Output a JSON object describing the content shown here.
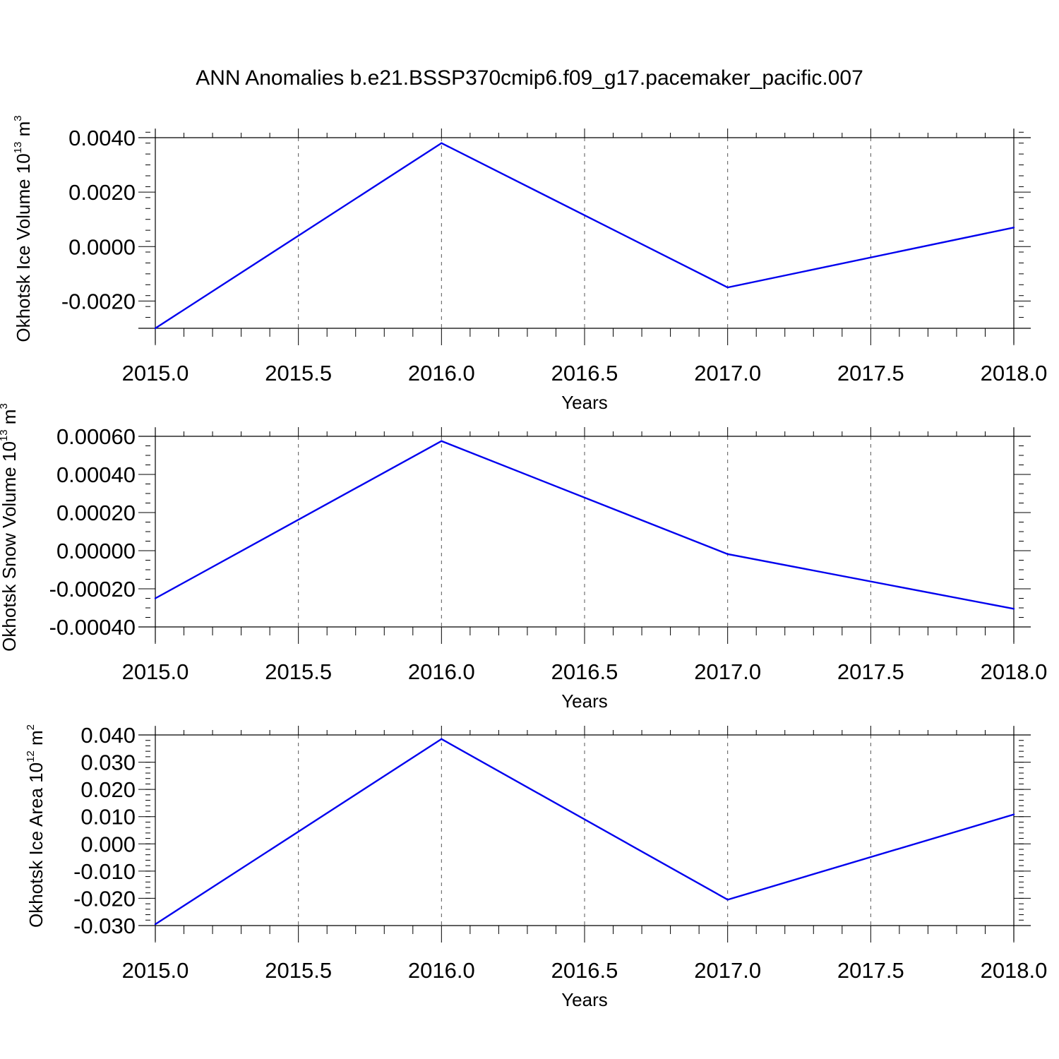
{
  "title": "ANN Anomalies b.e21.BSSP370cmip6.f09_g17.pacemaker_pacific.007",
  "colors": {
    "line": "#0000ee",
    "axis": "#000000",
    "grid": "#555555"
  },
  "chart_data": [
    {
      "type": "line",
      "xlabel": "Years",
      "ylabel": {
        "text": "Okhotsk Ice Volume 10",
        "sup": "13",
        "unit": " m",
        "unit_sup": "3"
      },
      "x": [
        2015,
        2016,
        2017,
        2018
      ],
      "series": [
        {
          "values": [
            -0.003,
            0.0038,
            -0.0015,
            0.0007
          ]
        }
      ],
      "xlim": [
        2015,
        2018
      ],
      "ylim": [
        -0.003,
        0.004
      ],
      "xticks": [
        2015.0,
        2015.5,
        2016.0,
        2016.5,
        2017.0,
        2017.5,
        2018.0
      ],
      "xtick_labels": [
        "2015.0",
        "2015.5",
        "2016.0",
        "2016.5",
        "2017.0",
        "2017.5",
        "2018.0"
      ],
      "yticks": [
        -0.002,
        0.0,
        0.002,
        0.004
      ],
      "ytick_labels": [
        "-0.0020",
        "0.0000",
        "0.0020",
        "0.0040"
      ],
      "y_minor_step": 0.0004,
      "grid": "x dashed"
    },
    {
      "type": "line",
      "xlabel": "Years",
      "ylabel": {
        "text": "Okhotsk Snow Volume 10",
        "sup": "13",
        "unit": " m",
        "unit_sup": "3"
      },
      "x": [
        2015,
        2016,
        2017,
        2018
      ],
      "series": [
        {
          "values": [
            -0.00025,
            0.000575,
            -1.8e-05,
            -0.000305
          ]
        }
      ],
      "xlim": [
        2015,
        2018
      ],
      "ylim": [
        -0.0004,
        0.0006
      ],
      "xticks": [
        2015.0,
        2015.5,
        2016.0,
        2016.5,
        2017.0,
        2017.5,
        2018.0
      ],
      "xtick_labels": [
        "2015.0",
        "2015.5",
        "2016.0",
        "2016.5",
        "2017.0",
        "2017.5",
        "2018.0"
      ],
      "yticks": [
        -0.0004,
        -0.0002,
        0.0,
        0.0002,
        0.0004,
        0.0006
      ],
      "ytick_labels": [
        "-0.00040",
        "-0.00020",
        "0.00000",
        "0.00020",
        "0.00040",
        "0.00060"
      ],
      "y_minor_step": 5e-05,
      "grid": "x dashed"
    },
    {
      "type": "line",
      "xlabel": "Years",
      "ylabel": {
        "text": "Okhotsk Ice Area 10",
        "sup": "12",
        "unit": " m",
        "unit_sup": "2"
      },
      "x": [
        2015,
        2016,
        2017,
        2018
      ],
      "series": [
        {
          "values": [
            -0.0295,
            0.0385,
            -0.0205,
            0.0108
          ]
        }
      ],
      "xlim": [
        2015,
        2018
      ],
      "ylim": [
        -0.03,
        0.04
      ],
      "xticks": [
        2015.0,
        2015.5,
        2016.0,
        2016.5,
        2017.0,
        2017.5,
        2018.0
      ],
      "xtick_labels": [
        "2015.0",
        "2015.5",
        "2016.0",
        "2016.5",
        "2017.0",
        "2017.5",
        "2018.0"
      ],
      "yticks": [
        -0.03,
        -0.02,
        -0.01,
        0.0,
        0.01,
        0.02,
        0.03,
        0.04
      ],
      "ytick_labels": [
        "-0.030",
        "-0.020",
        "-0.010",
        "0.000",
        "0.010",
        "0.020",
        "0.030",
        "0.040"
      ],
      "y_minor_step": 0.002,
      "grid": "x dashed"
    }
  ]
}
